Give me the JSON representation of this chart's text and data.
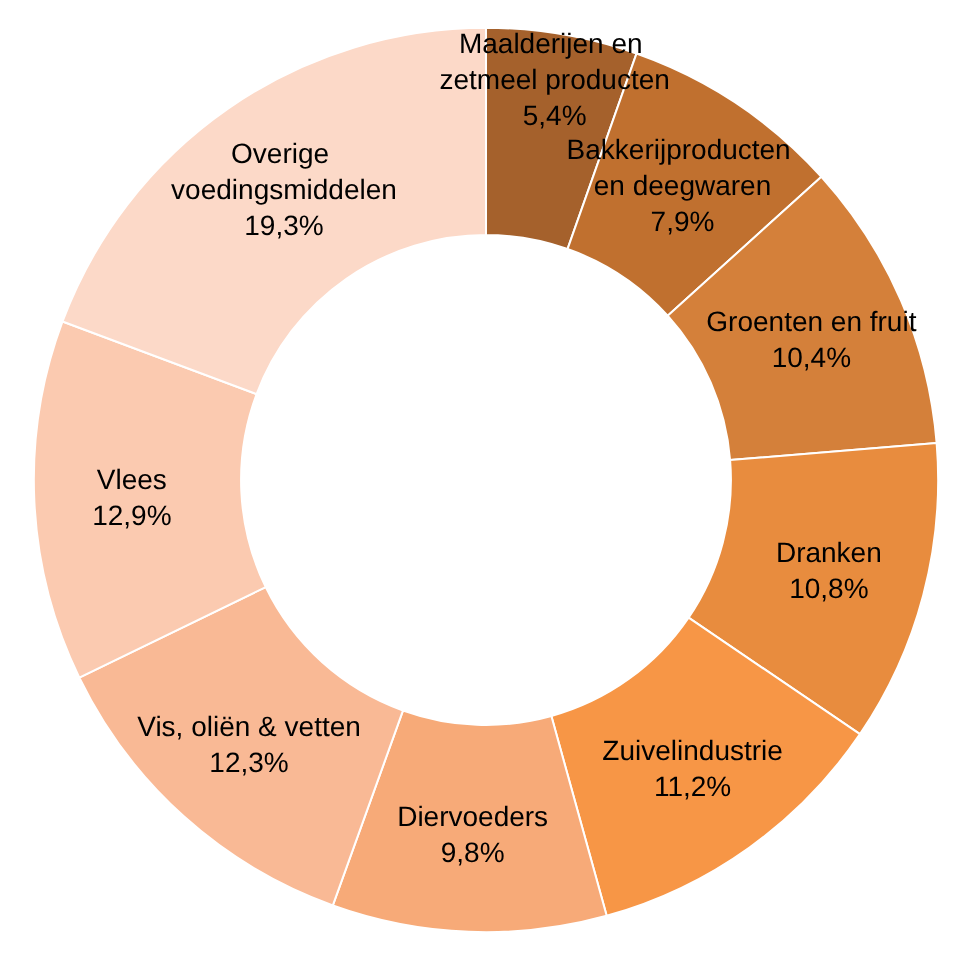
{
  "chart_data": {
    "type": "donut",
    "categories": [
      "Maalderijen en zetmeel producten",
      "Bakkerijproducten en deegwaren",
      "Groenten en fruit",
      "Dranken",
      "Zuivelindustrie",
      "Diervoeders",
      "Vis, oliën & vetten",
      "Vlees",
      "Overige voedingsmiddelen"
    ],
    "values": [
      5.4,
      7.9,
      10.4,
      10.8,
      11.2,
      9.8,
      12.3,
      12.9,
      19.3
    ],
    "value_labels": [
      "5,4%",
      "7,9%",
      "10,4%",
      "10,8%",
      "11,2%",
      "9,8%",
      "12,3%",
      "12,9%",
      "19,3%"
    ],
    "colors": [
      "#a5612c",
      "#c0702f",
      "#d4803a",
      "#e88c3e",
      "#f79646",
      "#f7aa78",
      "#f9b995",
      "#fbcab0",
      "#fcd9c8"
    ],
    "legend": false
  }
}
